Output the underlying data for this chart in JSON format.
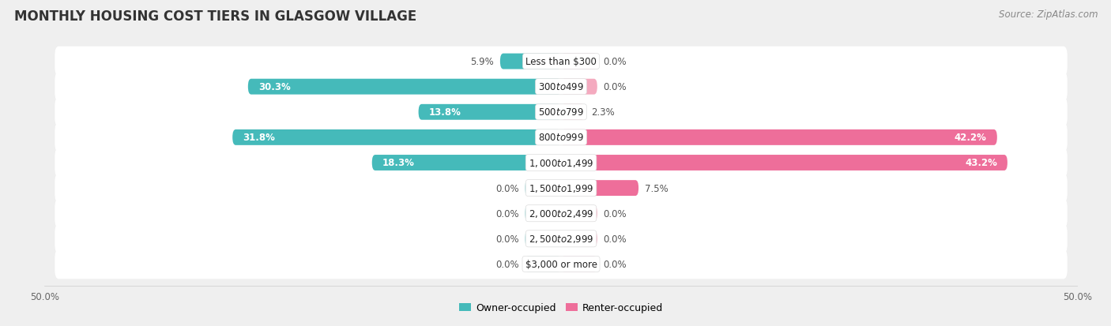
{
  "title": "MONTHLY HOUSING COST TIERS IN GLASGOW VILLAGE",
  "source": "Source: ZipAtlas.com",
  "categories": [
    "Less than $300",
    "$300 to $499",
    "$500 to $799",
    "$800 to $999",
    "$1,000 to $1,499",
    "$1,500 to $1,999",
    "$2,000 to $2,499",
    "$2,500 to $2,999",
    "$3,000 or more"
  ],
  "owner_values": [
    5.9,
    30.3,
    13.8,
    31.8,
    18.3,
    0.0,
    0.0,
    0.0,
    0.0
  ],
  "renter_values": [
    0.0,
    0.0,
    2.3,
    42.2,
    43.2,
    7.5,
    0.0,
    0.0,
    0.0
  ],
  "owner_color": "#45BABA",
  "owner_color_light": "#A8DCDC",
  "renter_color": "#EE6E9A",
  "renter_color_light": "#F4AABF",
  "owner_label": "Owner-occupied",
  "renter_label": "Renter-occupied",
  "axis_limit": 50.0,
  "background_color": "#efefef",
  "row_bg_color": "#ffffff",
  "title_fontsize": 12,
  "source_fontsize": 8.5,
  "label_fontsize": 8.5,
  "cat_fontsize": 8.5,
  "bar_height": 0.62,
  "stub_value": 3.5,
  "inner_label_threshold": 8.0
}
